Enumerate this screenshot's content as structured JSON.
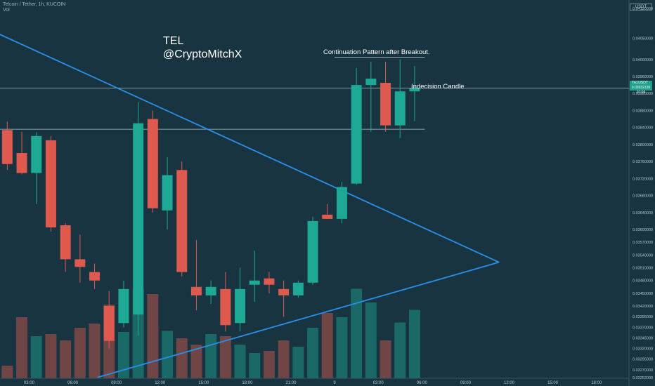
{
  "header": {
    "ticker": "Telcoin / Tether, 1h, KUCOIN",
    "volume_label": "Vol"
  },
  "axis": {
    "currency": "USDT",
    "price_tag_symbol": "TELUSDT · 0.03932139",
    "price_tag_countdown": "07:09"
  },
  "annotations": {
    "author_line1": "TEL",
    "author_line2": "@CryptoMitchX",
    "continuation": "Continuation Pattern after Breakout.",
    "indecision": "Indecision Candle"
  },
  "colors": {
    "background": "#173440",
    "up": "#1ea896",
    "down": "#de5a4e",
    "trendline": "#2a8fe8",
    "level_line": "#c8d6da",
    "axis_text": "#b8c8ce"
  },
  "chart_data": {
    "type": "candlestick",
    "title": "Telcoin / Tether, 1h, KUCOIN",
    "ylim": [
      0.0325,
      0.0414
    ],
    "y_ticks": [
      0.0412,
      0.0405,
      0.04,
      0.0396,
      0.0392,
      0.0388,
      0.0384,
      0.038,
      0.0376,
      0.0372,
      0.0368,
      0.0364,
      0.036,
      0.0357,
      0.0354,
      0.0351,
      0.0348,
      0.0345,
      0.0342,
      0.03395,
      0.0337,
      0.03345,
      0.0332,
      0.03295,
      0.0327,
      0.03252
    ],
    "y_tick_labels": [
      "0.04120000",
      "0.04050000",
      "0.04000000",
      "0.03960000",
      "0.03920000",
      "0.03880000",
      "0.03840000",
      "0.03800000",
      "0.03760000",
      "0.03720000",
      "0.03680000",
      "0.03640000",
      "0.03600000",
      "0.03570000",
      "0.03540000",
      "0.03510000",
      "0.03480000",
      "0.03450000",
      "0.03420000",
      "0.03395000",
      "0.03370000",
      "0.03345000",
      "0.03320000",
      "0.03295000",
      "0.03270000",
      "0.03252000"
    ],
    "x_tick_labels": [
      "03:00",
      "06:00",
      "09:00",
      "12:00",
      "15:00",
      "18:00",
      "21:00",
      "9",
      "03:00",
      "06:00",
      "09:00",
      "12:00",
      "15:00",
      "18:00"
    ],
    "x_tick_index": [
      1.5,
      4.5,
      7.5,
      10.5,
      13.5,
      16.5,
      19.5,
      22.5,
      25.5,
      28.5,
      31.5,
      34.5,
      37.5,
      40.5
    ],
    "candles": [
      {
        "o": 0.03834,
        "h": 0.03854,
        "l": 0.0374,
        "c": 0.03754
      },
      {
        "o": 0.0378,
        "h": 0.0383,
        "l": 0.0373,
        "c": 0.03733
      },
      {
        "o": 0.03733,
        "h": 0.03829,
        "l": 0.0366,
        "c": 0.0382
      },
      {
        "o": 0.0381,
        "h": 0.0382,
        "l": 0.03595,
        "c": 0.03605
      },
      {
        "o": 0.0361,
        "h": 0.03615,
        "l": 0.035,
        "c": 0.0353
      },
      {
        "o": 0.0353,
        "h": 0.03588,
        "l": 0.03475,
        "c": 0.03512
      },
      {
        "o": 0.035,
        "h": 0.0352,
        "l": 0.0346,
        "c": 0.0348
      },
      {
        "o": 0.0342,
        "h": 0.03455,
        "l": 0.0332,
        "c": 0.03338
      },
      {
        "o": 0.0338,
        "h": 0.0348,
        "l": 0.0337,
        "c": 0.0346
      },
      {
        "o": 0.034,
        "h": 0.039,
        "l": 0.0335,
        "c": 0.0385
      },
      {
        "o": 0.0386,
        "h": 0.0388,
        "l": 0.0364,
        "c": 0.0365
      },
      {
        "o": 0.03645,
        "h": 0.0377,
        "l": 0.036,
        "c": 0.03728
      },
      {
        "o": 0.0374,
        "h": 0.0376,
        "l": 0.0349,
        "c": 0.035
      },
      {
        "o": 0.03465,
        "h": 0.03575,
        "l": 0.0341,
        "c": 0.03445
      },
      {
        "o": 0.03445,
        "h": 0.0348,
        "l": 0.03425,
        "c": 0.03465
      },
      {
        "o": 0.0346,
        "h": 0.035,
        "l": 0.0336,
        "c": 0.03375
      },
      {
        "o": 0.0338,
        "h": 0.0351,
        "l": 0.0336,
        "c": 0.0346
      },
      {
        "o": 0.0347,
        "h": 0.0355,
        "l": 0.0343,
        "c": 0.0348
      },
      {
        "o": 0.03485,
        "h": 0.035,
        "l": 0.0345,
        "c": 0.0347
      },
      {
        "o": 0.0346,
        "h": 0.0348,
        "l": 0.03395,
        "c": 0.03445
      },
      {
        "o": 0.03445,
        "h": 0.0348,
        "l": 0.0344,
        "c": 0.03475
      },
      {
        "o": 0.03475,
        "h": 0.0363,
        "l": 0.0347,
        "c": 0.0362
      },
      {
        "o": 0.03635,
        "h": 0.0366,
        "l": 0.03625,
        "c": 0.03625
      },
      {
        "o": 0.03625,
        "h": 0.03712,
        "l": 0.03615,
        "c": 0.037
      },
      {
        "o": 0.03708,
        "h": 0.0398,
        "l": 0.03705,
        "c": 0.0394
      },
      {
        "o": 0.0394,
        "h": 0.03995,
        "l": 0.0383,
        "c": 0.03955
      },
      {
        "o": 0.03945,
        "h": 0.03995,
        "l": 0.0383,
        "c": 0.03845
      },
      {
        "o": 0.03845,
        "h": 0.04,
        "l": 0.03815,
        "c": 0.03925
      },
      {
        "o": 0.03925,
        "h": 0.03985,
        "l": 0.03855,
        "c": 0.03932
      }
    ],
    "volume": [
      12,
      58,
      40,
      42,
      36,
      48,
      52,
      70,
      44,
      85,
      80,
      45,
      38,
      32,
      42,
      40,
      32,
      24,
      26,
      36,
      30,
      48,
      62,
      58,
      85,
      72,
      36,
      53,
      65
    ],
    "volume_max": 100,
    "trendlines": [
      {
        "from": {
          "i": -0.7,
          "y": 0.04062
        },
        "to": {
          "i": 33.8,
          "y": 0.03523
        }
      },
      {
        "from": {
          "i": 6.2,
          "y": 0.03252
        },
        "to": {
          "i": 33.8,
          "y": 0.03523
        }
      }
    ],
    "horizontal_levels": [
      {
        "y": 0.03836,
        "from_i": -0.7,
        "to_i": 28.7
      },
      {
        "y": 0.03933,
        "from_i": -0.7,
        "to_i": 43
      }
    ],
    "pattern_box": {
      "from_i": 22.5,
      "to_i": 28.7,
      "top": 0.04005,
      "bottom": 0.03836
    },
    "grid": false
  }
}
